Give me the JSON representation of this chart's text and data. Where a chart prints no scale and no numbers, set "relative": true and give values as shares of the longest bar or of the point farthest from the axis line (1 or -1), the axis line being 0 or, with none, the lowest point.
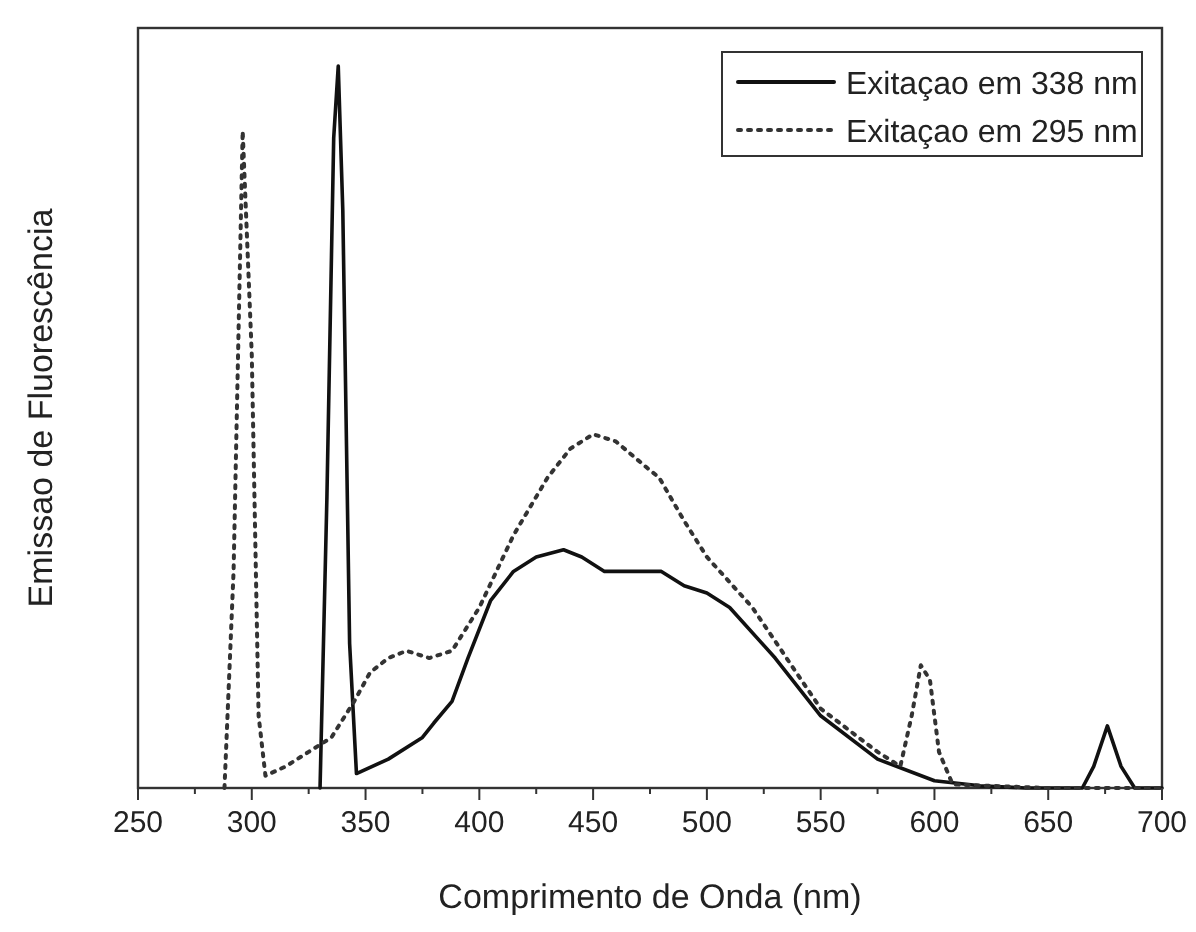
{
  "chart_data": {
    "type": "line",
    "xlabel": "Comprimento de Onda (nm)",
    "ylabel": "Emissao de Fluorescência",
    "relative": true,
    "xlim": [
      250,
      700
    ],
    "xticks": [
      250,
      300,
      350,
      400,
      450,
      500,
      550,
      600,
      650,
      700
    ],
    "legend": "top right",
    "series": [
      {
        "name": "Exitaçao em 338 nm",
        "color": "#111111",
        "line_style": "solid",
        "x": [
          330,
          333,
          336,
          338,
          340,
          343,
          346,
          360,
          375,
          380,
          388,
          395,
          405,
          415,
          425,
          437,
          445,
          455,
          470,
          480,
          490,
          500,
          510,
          530,
          550,
          575,
          600,
          620,
          640,
          665,
          670,
          676,
          682,
          688,
          700
        ],
        "values": [
          0,
          0.4,
          0.9,
          1.0,
          0.8,
          0.2,
          0.02,
          0.04,
          0.07,
          0.09,
          0.12,
          0.18,
          0.26,
          0.3,
          0.32,
          0.33,
          0.32,
          0.3,
          0.3,
          0.3,
          0.28,
          0.27,
          0.25,
          0.18,
          0.1,
          0.04,
          0.01,
          0.003,
          0,
          0,
          0.03,
          0.086,
          0.03,
          0,
          0
        ]
      },
      {
        "name": "Exitaçao em 295 nm",
        "color": "#333333",
        "line_style": "dotted",
        "x": [
          288,
          292,
          296,
          300,
          303,
          306,
          315,
          325,
          335,
          345,
          352,
          360,
          368,
          378,
          388,
          400,
          415,
          430,
          440,
          450,
          460,
          475,
          479,
          490,
          500,
          520,
          550,
          575,
          585,
          590,
          594,
          598,
          602,
          608,
          650,
          700
        ],
        "values": [
          0,
          0.3,
          0.91,
          0.6,
          0.1,
          0.017,
          0.03,
          0.05,
          0.07,
          0.12,
          0.16,
          0.18,
          0.19,
          0.18,
          0.19,
          0.25,
          0.35,
          0.43,
          0.47,
          0.49,
          0.48,
          0.44,
          0.43,
          0.37,
          0.32,
          0.25,
          0.11,
          0.05,
          0.03,
          0.1,
          0.17,
          0.15,
          0.05,
          0.005,
          0,
          0
        ]
      }
    ]
  }
}
